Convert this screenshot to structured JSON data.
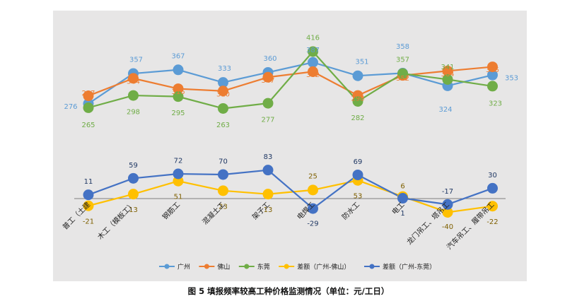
{
  "caption": "图 5   填报频率较高工种价格监测情况（单位：元/工日）",
  "chart_data": {
    "type": "line",
    "categories": [
      "普工（土建",
      "木工（模板工）",
      "钢筋工",
      "混凝土工",
      "架子工",
      "电焊工",
      "防水工",
      "电工",
      "龙门吊工、塔吊工",
      "汽车吊工、履带吊工"
    ],
    "series": [
      {
        "name": "广州",
        "color": "#5b9bd5",
        "values": [
          276,
          357,
          367,
          333,
          360,
          387,
          351,
          358,
          324,
          353
        ]
      },
      {
        "name": "佛山",
        "color": "#ed7d31",
        "values": [
          297,
          344,
          316,
          310,
          347,
          362,
          298,
          352,
          364,
          375
        ]
      },
      {
        "name": "东莞",
        "color": "#70ad47",
        "values": [
          265,
          298,
          295,
          263,
          277,
          416,
          282,
          357,
          341,
          323
        ]
      },
      {
        "name": "差额（广州-佛山）",
        "color": "#ffc000",
        "values": [
          -21,
          13,
          51,
          23,
          13,
          25,
          53,
          6,
          -40,
          -22
        ]
      },
      {
        "name": "差额（广州-东莞）",
        "color": "#4472c4",
        "values": [
          11,
          59,
          72,
          70,
          83,
          -29,
          69,
          1,
          -17,
          30
        ]
      }
    ],
    "grid": false,
    "legend_position": "bottom"
  }
}
